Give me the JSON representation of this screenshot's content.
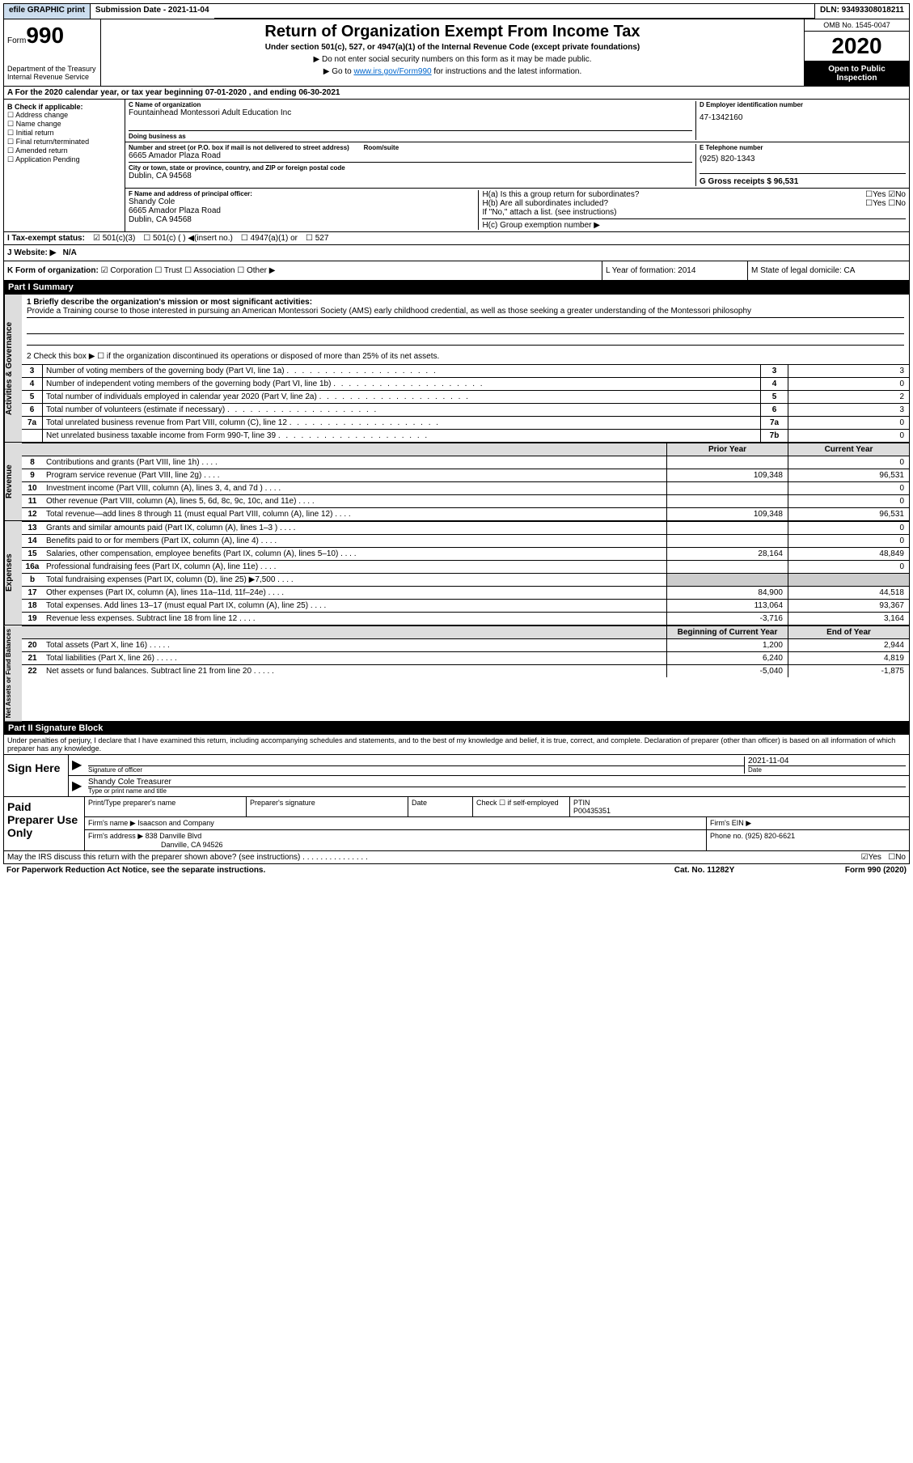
{
  "topbar": {
    "efile_label": "efile GRAPHIC print",
    "submission_label": "Submission Date - 2021-11-04",
    "dln": "DLN: 93493308018211"
  },
  "header": {
    "form_label": "Form",
    "form_number": "990",
    "dept": "Department of the Treasury\nInternal Revenue Service",
    "title": "Return of Organization Exempt From Income Tax",
    "subtitle": "Under section 501(c), 527, or 4947(a)(1) of the Internal Revenue Code (except private foundations)",
    "instr1": "▶ Do not enter social security numbers on this form as it may be made public.",
    "instr2_prefix": "▶ Go to ",
    "instr2_link": "www.irs.gov/Form990",
    "instr2_suffix": " for instructions and the latest information.",
    "omb": "OMB No. 1545-0047",
    "year": "2020",
    "open_public": "Open to Public Inspection"
  },
  "section_a": "A For the 2020 calendar year, or tax year beginning 07-01-2020    , and ending 06-30-2021",
  "section_b": {
    "label": "B Check if applicable:",
    "opts": [
      "Address change",
      "Name change",
      "Initial return",
      "Final return/terminated",
      "Amended return",
      "Application Pending"
    ]
  },
  "section_c": {
    "name_label": "C Name of organization",
    "name": "Fountainhead Montessori Adult Education Inc",
    "dba_label": "Doing business as",
    "addr_label": "Number and street (or P.O. box if mail is not delivered to street address)",
    "room_label": "Room/suite",
    "addr": "6665 Amador Plaza Road",
    "city_label": "City or town, state or province, country, and ZIP or foreign postal code",
    "city": "Dublin, CA  94568"
  },
  "section_d": {
    "ein_label": "D Employer identification number",
    "ein": "47-1342160",
    "phone_label": "E Telephone number",
    "phone": "(925) 820-1343",
    "gross_label": "G Gross receipts $ 96,531"
  },
  "section_f": {
    "label": "F Name and address of principal officer:",
    "name": "Shandy Cole",
    "addr": "6665 Amador Plaza Road",
    "city": "Dublin, CA  94568"
  },
  "section_h": {
    "ha": "H(a)  Is this a group return for subordinates?",
    "hb": "H(b)  Are all subordinates included?",
    "hb_note": "If \"No,\" attach a list. (see instructions)",
    "hc": "H(c)  Group exemption number ▶",
    "yes": "Yes",
    "no": "No"
  },
  "tax_status": {
    "label": "I   Tax-exempt status:",
    "opt1": "501(c)(3)",
    "opt2": "501(c) (  ) ◀(insert no.)",
    "opt3": "4947(a)(1) or",
    "opt4": "527"
  },
  "website": {
    "label": "J   Website: ▶",
    "value": "N/A"
  },
  "k_org": {
    "label": "K Form of organization:",
    "opts": [
      "Corporation",
      "Trust",
      "Association",
      "Other ▶"
    ],
    "l_label": "L Year of formation: 2014",
    "m_label": "M State of legal domicile: CA"
  },
  "part1": {
    "header": "Part I     Summary",
    "side_gov": "Activities & Governance",
    "side_rev": "Revenue",
    "side_exp": "Expenses",
    "side_net": "Net Assets or Fund Balances",
    "line1_label": "1  Briefly describe the organization's mission or most significant activities:",
    "line1_text": "Provide a Training course to those interested in pursuing an American Montessori Society (AMS) early childhood credential, as well as those seeking a greater understanding of the Montessori philosophy",
    "line2": "2   Check this box ▶ ☐  if the organization discontinued its operations or disposed of more than 25% of its net assets.",
    "rows": [
      {
        "n": "3",
        "t": "Number of voting members of the governing body (Part VI, line 1a)",
        "b": "3",
        "v": "3"
      },
      {
        "n": "4",
        "t": "Number of independent voting members of the governing body (Part VI, line 1b)",
        "b": "4",
        "v": "0"
      },
      {
        "n": "5",
        "t": "Total number of individuals employed in calendar year 2020 (Part V, line 2a)",
        "b": "5",
        "v": "2"
      },
      {
        "n": "6",
        "t": "Total number of volunteers (estimate if necessary)",
        "b": "6",
        "v": "3"
      },
      {
        "n": "7a",
        "t": "Total unrelated business revenue from Part VIII, column (C), line 12",
        "b": "7a",
        "v": "0"
      },
      {
        "n": "",
        "t": "Net unrelated business taxable income from Form 990-T, line 39",
        "b": "7b",
        "v": "0"
      }
    ],
    "prior_label": "Prior Year",
    "curr_label": "Current Year",
    "rev_rows": [
      {
        "n": "8",
        "t": "Contributions and grants (Part VIII, line 1h)",
        "p": "",
        "c": "0"
      },
      {
        "n": "9",
        "t": "Program service revenue (Part VIII, line 2g)",
        "p": "109,348",
        "c": "96,531"
      },
      {
        "n": "10",
        "t": "Investment income (Part VIII, column (A), lines 3, 4, and 7d )",
        "p": "",
        "c": "0"
      },
      {
        "n": "11",
        "t": "Other revenue (Part VIII, column (A), lines 5, 6d, 8c, 9c, 10c, and 11e)",
        "p": "",
        "c": "0"
      },
      {
        "n": "12",
        "t": "Total revenue—add lines 8 through 11 (must equal Part VIII, column (A), line 12)",
        "p": "109,348",
        "c": "96,531"
      }
    ],
    "exp_rows": [
      {
        "n": "13",
        "t": "Grants and similar amounts paid (Part IX, column (A), lines 1–3 )",
        "p": "",
        "c": "0"
      },
      {
        "n": "14",
        "t": "Benefits paid to or for members (Part IX, column (A), line 4)",
        "p": "",
        "c": "0"
      },
      {
        "n": "15",
        "t": "Salaries, other compensation, employee benefits (Part IX, column (A), lines 5–10)",
        "p": "28,164",
        "c": "48,849"
      },
      {
        "n": "16a",
        "t": "Professional fundraising fees (Part IX, column (A), line 11e)",
        "p": "",
        "c": "0"
      },
      {
        "n": "b",
        "t": "Total fundraising expenses (Part IX, column (D), line 25) ▶7,500",
        "p": "grey",
        "c": "grey"
      },
      {
        "n": "17",
        "t": "Other expenses (Part IX, column (A), lines 11a–11d, 11f–24e)",
        "p": "84,900",
        "c": "44,518"
      },
      {
        "n": "18",
        "t": "Total expenses. Add lines 13–17 (must equal Part IX, column (A), line 25)",
        "p": "113,064",
        "c": "93,367"
      },
      {
        "n": "19",
        "t": "Revenue less expenses. Subtract line 18 from line 12",
        "p": "-3,716",
        "c": "3,164"
      }
    ],
    "bal_header": {
      "p": "Beginning of Current Year",
      "c": "End of Year"
    },
    "bal_rows": [
      {
        "n": "20",
        "t": "Total assets (Part X, line 16)",
        "p": "1,200",
        "c": "2,944"
      },
      {
        "n": "21",
        "t": "Total liabilities (Part X, line 26)",
        "p": "6,240",
        "c": "4,819"
      },
      {
        "n": "22",
        "t": "Net assets or fund balances. Subtract line 21 from line 20",
        "p": "-5,040",
        "c": "-1,875"
      }
    ]
  },
  "part2": {
    "header": "Part II     Signature Block",
    "declaration": "Under penalties of perjury, I declare that I have examined this return, including accompanying schedules and statements, and to the best of my knowledge and belief, it is true, correct, and complete. Declaration of preparer (other than officer) is based on all information of which preparer has any knowledge.",
    "sign_here": "Sign Here",
    "sig_officer": "Signature of officer",
    "date_val": "2021-11-04",
    "date_label": "Date",
    "name_title": "Shandy Cole  Treasurer",
    "type_label": "Type or print name and title",
    "paid_prep": "Paid Preparer Use Only",
    "prep_name_label": "Print/Type preparer's name",
    "prep_sig_label": "Preparer's signature",
    "prep_date_label": "Date",
    "check_self": "Check ☐ if self-employed",
    "ptin_label": "PTIN",
    "ptin": "P00435351",
    "firm_name_label": "Firm's name     ▶",
    "firm_name": "Isaacson and Company",
    "firm_ein_label": "Firm's EIN ▶",
    "firm_addr_label": "Firm's address ▶",
    "firm_addr": "838 Danville Blvd",
    "firm_city": "Danville, CA  94526",
    "firm_phone_label": "Phone no. (925) 820-6621",
    "discuss": "May the IRS discuss this return with the preparer shown above? (see instructions)",
    "yes": "Yes",
    "no": "No"
  },
  "footer": {
    "paperwork": "For Paperwork Reduction Act Notice, see the separate instructions.",
    "cat": "Cat. No. 11282Y",
    "form": "Form 990 (2020)"
  }
}
